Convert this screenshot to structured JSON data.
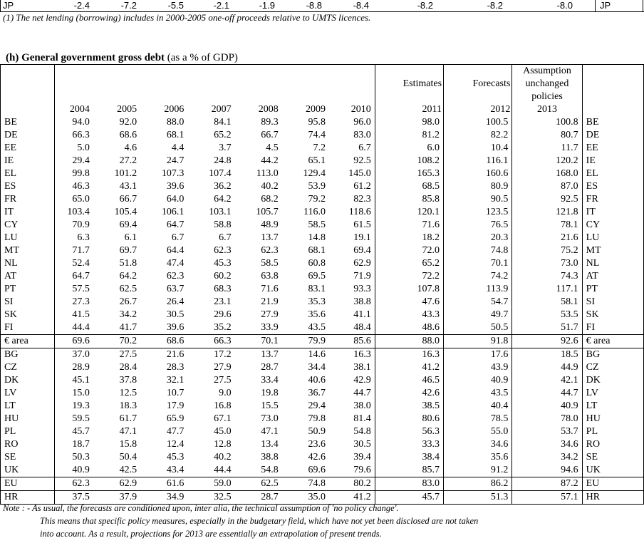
{
  "top_row": {
    "label": "JP",
    "values": [
      "-2.4",
      "-7.2",
      "-5.5",
      "-2.1",
      "-1.9",
      "-8.8",
      "-8.4",
      "-8.2",
      "-8.2",
      "-8.0"
    ],
    "label_right": "JP"
  },
  "footnote1": "(1)  The net lending (borrowing) includes in 2000-2005 one-off proceeds relative to UMTS licences.",
  "section": {
    "title_bold": "(h)  General government gross debt",
    "title_normal": " (as a % of GDP)"
  },
  "table": {
    "headers": {
      "estimates": "Estimates",
      "forecasts": "Forecasts",
      "assumption": [
        "Assumption",
        "unchanged",
        "policies"
      ],
      "years": [
        "2004",
        "2005",
        "2006",
        "2007",
        "2008",
        "2009",
        "2010",
        "2011",
        "2012",
        "2013"
      ]
    },
    "rows": [
      {
        "label": "BE",
        "values": [
          "94.0",
          "92.0",
          "88.0",
          "84.1",
          "89.3",
          "95.8",
          "96.0",
          "98.0",
          "100.5",
          "100.8"
        ]
      },
      {
        "label": "DE",
        "values": [
          "66.3",
          "68.6",
          "68.1",
          "65.2",
          "66.7",
          "74.4",
          "83.0",
          "81.2",
          "82.2",
          "80.7"
        ]
      },
      {
        "label": "EE",
        "values": [
          "5.0",
          "4.6",
          "4.4",
          "3.7",
          "4.5",
          "7.2",
          "6.7",
          "6.0",
          "10.4",
          "11.7"
        ]
      },
      {
        "label": "IE",
        "values": [
          "29.4",
          "27.2",
          "24.7",
          "24.8",
          "44.2",
          "65.1",
          "92.5",
          "108.2",
          "116.1",
          "120.2"
        ]
      },
      {
        "label": "EL",
        "values": [
          "99.8",
          "101.2",
          "107.3",
          "107.4",
          "113.0",
          "129.4",
          "145.0",
          "165.3",
          "160.6",
          "168.0"
        ]
      },
      {
        "label": "ES",
        "values": [
          "46.3",
          "43.1",
          "39.6",
          "36.2",
          "40.2",
          "53.9",
          "61.2",
          "68.5",
          "80.9",
          "87.0"
        ]
      },
      {
        "label": "FR",
        "values": [
          "65.0",
          "66.7",
          "64.0",
          "64.2",
          "68.2",
          "79.2",
          "82.3",
          "85.8",
          "90.5",
          "92.5"
        ]
      },
      {
        "label": "IT",
        "values": [
          "103.4",
          "105.4",
          "106.1",
          "103.1",
          "105.7",
          "116.0",
          "118.6",
          "120.1",
          "123.5",
          "121.8"
        ]
      },
      {
        "label": "CY",
        "values": [
          "70.9",
          "69.4",
          "64.7",
          "58.8",
          "48.9",
          "58.5",
          "61.5",
          "71.6",
          "76.5",
          "78.1"
        ]
      },
      {
        "label": "LU",
        "values": [
          "6.3",
          "6.1",
          "6.7",
          "6.7",
          "13.7",
          "14.8",
          "19.1",
          "18.2",
          "20.3",
          "21.6"
        ]
      },
      {
        "label": "MT",
        "values": [
          "71.7",
          "69.7",
          "64.4",
          "62.3",
          "62.3",
          "68.1",
          "69.4",
          "72.0",
          "74.8",
          "75.2"
        ]
      },
      {
        "label": "NL",
        "values": [
          "52.4",
          "51.8",
          "47.4",
          "45.3",
          "58.5",
          "60.8",
          "62.9",
          "65.2",
          "70.1",
          "73.0"
        ]
      },
      {
        "label": "AT",
        "values": [
          "64.7",
          "64.2",
          "62.3",
          "60.2",
          "63.8",
          "69.5",
          "71.9",
          "72.2",
          "74.2",
          "74.3"
        ]
      },
      {
        "label": "PT",
        "values": [
          "57.5",
          "62.5",
          "63.7",
          "68.3",
          "71.6",
          "83.1",
          "93.3",
          "107.8",
          "113.9",
          "117.1"
        ]
      },
      {
        "label": "SI",
        "values": [
          "27.3",
          "26.7",
          "26.4",
          "23.1",
          "21.9",
          "35.3",
          "38.8",
          "47.6",
          "54.7",
          "58.1"
        ]
      },
      {
        "label": "SK",
        "values": [
          "41.5",
          "34.2",
          "30.5",
          "29.6",
          "27.9",
          "35.6",
          "41.1",
          "43.3",
          "49.7",
          "53.5"
        ]
      },
      {
        "label": "FI",
        "values": [
          "44.4",
          "41.7",
          "39.6",
          "35.2",
          "33.9",
          "43.5",
          "48.4",
          "48.6",
          "50.5",
          "51.7"
        ]
      },
      {
        "label": "€ area",
        "values": [
          "69.6",
          "70.2",
          "68.6",
          "66.3",
          "70.1",
          "79.9",
          "85.6",
          "88.0",
          "91.8",
          "92.6"
        ],
        "sep": true
      },
      {
        "label": "BG",
        "values": [
          "37.0",
          "27.5",
          "21.6",
          "17.2",
          "13.7",
          "14.6",
          "16.3",
          "16.3",
          "17.6",
          "18.5"
        ],
        "sep": true
      },
      {
        "label": "CZ",
        "values": [
          "28.9",
          "28.4",
          "28.3",
          "27.9",
          "28.7",
          "34.4",
          "38.1",
          "41.2",
          "43.9",
          "44.9"
        ]
      },
      {
        "label": "DK",
        "values": [
          "45.1",
          "37.8",
          "32.1",
          "27.5",
          "33.4",
          "40.6",
          "42.9",
          "46.5",
          "40.9",
          "42.1"
        ]
      },
      {
        "label": "LV",
        "values": [
          "15.0",
          "12.5",
          "10.7",
          "9.0",
          "19.8",
          "36.7",
          "44.7",
          "42.6",
          "43.5",
          "44.7"
        ]
      },
      {
        "label": "LT",
        "values": [
          "19.3",
          "18.3",
          "17.9",
          "16.8",
          "15.5",
          "29.4",
          "38.0",
          "38.5",
          "40.4",
          "40.9"
        ]
      },
      {
        "label": "HU",
        "values": [
          "59.5",
          "61.7",
          "65.9",
          "67.1",
          "73.0",
          "79.8",
          "81.4",
          "80.6",
          "78.5",
          "78.0"
        ]
      },
      {
        "label": "PL",
        "values": [
          "45.7",
          "47.1",
          "47.7",
          "45.0",
          "47.1",
          "50.9",
          "54.8",
          "56.3",
          "55.0",
          "53.7"
        ]
      },
      {
        "label": "RO",
        "values": [
          "18.7",
          "15.8",
          "12.4",
          "12.8",
          "13.4",
          "23.6",
          "30.5",
          "33.3",
          "34.6",
          "34.6"
        ]
      },
      {
        "label": "SE",
        "values": [
          "50.3",
          "50.4",
          "45.3",
          "40.2",
          "38.8",
          "42.6",
          "39.4",
          "38.4",
          "35.6",
          "34.2"
        ]
      },
      {
        "label": "UK",
        "values": [
          "40.9",
          "42.5",
          "43.4",
          "44.4",
          "54.8",
          "69.6",
          "79.6",
          "85.7",
          "91.2",
          "94.6"
        ]
      },
      {
        "label": "EU",
        "values": [
          "62.3",
          "62.9",
          "61.6",
          "59.0",
          "62.5",
          "74.8",
          "80.2",
          "83.0",
          "86.2",
          "87.2"
        ],
        "sep": true
      },
      {
        "label": "HR",
        "values": [
          "37.5",
          "37.9",
          "34.9",
          "32.5",
          "28.7",
          "35.0",
          "41.2",
          "45.7",
          "51.3",
          "57.1"
        ],
        "sep": true
      }
    ]
  },
  "note": {
    "line1": "Note : - As usual, the forecasts are conditioned upon, inter alia, the technical assumption of 'no policy change'.",
    "line2": "This means that specific policy measures, especially in the budgetary field, which have not yet been disclosed are not taken",
    "line3": "into account. As a result, projections for 2013 are essentially an extrapolation of present trends."
  }
}
